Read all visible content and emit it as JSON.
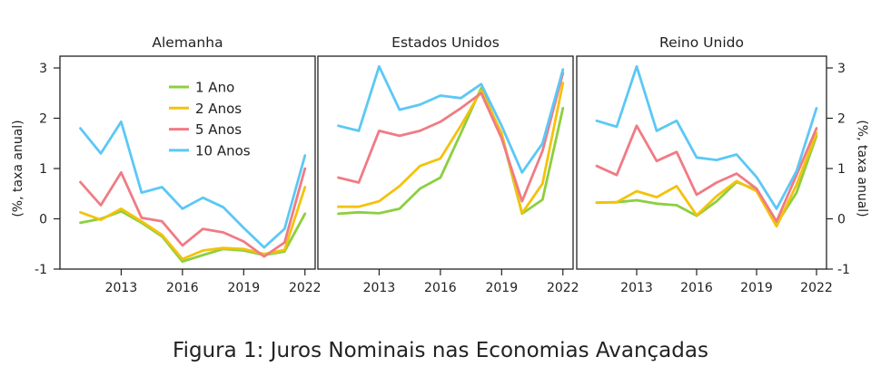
{
  "caption": "Figura 1: Juros Nominais nas Economias Avançadas",
  "y_axis_label": "(%, taxa anual)",
  "chart_data": [
    {
      "type": "line",
      "title": "Alemanha",
      "x": [
        2011,
        2012,
        2013,
        2014,
        2015,
        2016,
        2017,
        2018,
        2019,
        2020,
        2021,
        2022
      ],
      "x_ticks": [
        "2013",
        "2016",
        "2019",
        "2022"
      ],
      "y_ticks": [
        "-1",
        "0",
        "1",
        "2",
        "3"
      ],
      "ylim": [
        -1,
        3.2
      ],
      "legend": "top-right",
      "series": [
        {
          "name": "1 Ano",
          "color": "#8ccf3f",
          "values": [
            -0.08,
            0.0,
            0.15,
            -0.08,
            -0.35,
            -0.85,
            -0.72,
            -0.6,
            -0.63,
            -0.72,
            -0.65,
            0.1
          ]
        },
        {
          "name": "2 Anos",
          "color": "#f4c20d",
          "values": [
            0.13,
            -0.02,
            0.2,
            -0.05,
            -0.32,
            -0.8,
            -0.63,
            -0.58,
            -0.6,
            -0.7,
            -0.62,
            0.63
          ]
        },
        {
          "name": "5 Anos",
          "color": "#f07b84",
          "values": [
            0.73,
            0.27,
            0.92,
            0.02,
            -0.05,
            -0.53,
            -0.2,
            -0.27,
            -0.45,
            -0.75,
            -0.47,
            1.0
          ]
        },
        {
          "name": "10 Anos",
          "color": "#5bc8f5",
          "values": [
            1.8,
            1.3,
            1.93,
            0.52,
            0.63,
            0.2,
            0.42,
            0.23,
            -0.18,
            -0.57,
            -0.2,
            1.26
          ]
        }
      ]
    },
    {
      "type": "line",
      "title": "Estados Unidos",
      "x": [
        2011,
        2012,
        2013,
        2014,
        2015,
        2016,
        2017,
        2018,
        2019,
        2020,
        2021,
        2022
      ],
      "x_ticks": [
        "2013",
        "2016",
        "2019",
        "2022"
      ],
      "ylim": [
        -1,
        3.2
      ],
      "series": [
        {
          "name": "1 Ano",
          "color": "#8ccf3f",
          "values": [
            0.1,
            0.13,
            0.11,
            0.2,
            0.6,
            0.82,
            1.7,
            2.6,
            1.67,
            0.1,
            0.38,
            2.2
          ]
        },
        {
          "name": "2 Anos",
          "color": "#f4c20d",
          "values": [
            0.24,
            0.24,
            0.35,
            0.65,
            1.05,
            1.2,
            1.85,
            2.55,
            1.7,
            0.11,
            0.7,
            2.7
          ]
        },
        {
          "name": "5 Anos",
          "color": "#f07b84",
          "values": [
            0.82,
            0.72,
            1.75,
            1.65,
            1.75,
            1.93,
            2.2,
            2.5,
            1.6,
            0.35,
            1.35,
            2.9
          ]
        },
        {
          "name": "10 Anos",
          "color": "#5bc8f5",
          "values": [
            1.85,
            1.75,
            3.03,
            2.17,
            2.27,
            2.45,
            2.4,
            2.68,
            1.85,
            0.92,
            1.5,
            2.97
          ]
        }
      ]
    },
    {
      "type": "line",
      "title": "Reino Unido",
      "x": [
        2011,
        2012,
        2013,
        2014,
        2015,
        2016,
        2017,
        2018,
        2019,
        2020,
        2021,
        2022
      ],
      "x_ticks": [
        "2013",
        "2016",
        "2019",
        "2022"
      ],
      "y_ticks": [
        "-1",
        "0",
        "1",
        "2",
        "3"
      ],
      "ylim": [
        -1,
        3.2
      ],
      "series": [
        {
          "name": "1 Ano",
          "color": "#8ccf3f",
          "values": [
            0.32,
            0.33,
            0.37,
            0.3,
            0.27,
            0.06,
            0.35,
            0.73,
            0.58,
            -0.1,
            0.52,
            1.65
          ]
        },
        {
          "name": "2 Anos",
          "color": "#f4c20d",
          "values": [
            0.32,
            0.33,
            0.55,
            0.43,
            0.65,
            0.07,
            0.45,
            0.75,
            0.55,
            -0.15,
            0.68,
            1.7
          ]
        },
        {
          "name": "5 Anos",
          "color": "#f07b84",
          "values": [
            1.05,
            0.87,
            1.85,
            1.15,
            1.33,
            0.48,
            0.72,
            0.9,
            0.6,
            -0.05,
            0.87,
            1.8
          ]
        },
        {
          "name": "10 Anos",
          "color": "#5bc8f5",
          "values": [
            1.95,
            1.83,
            3.03,
            1.75,
            1.95,
            1.22,
            1.17,
            1.28,
            0.83,
            0.2,
            0.95,
            2.2
          ]
        }
      ]
    }
  ]
}
